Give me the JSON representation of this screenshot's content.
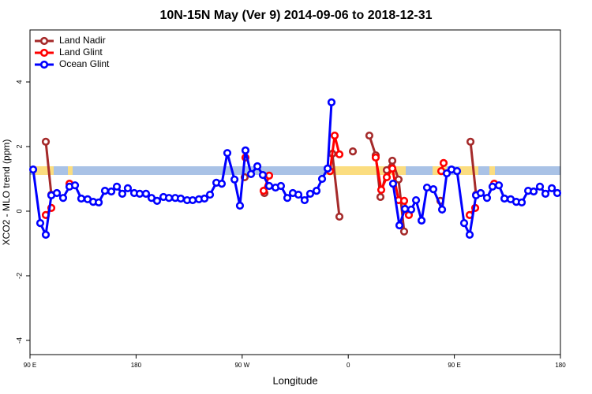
{
  "chart_data": {
    "type": "line",
    "title": "10N-15N May (Ver 9)   2014-09-06 to 2018-12-31",
    "x_label": "Longitude",
    "y_label": "XCO2 - MLO trend (ppm)",
    "xlim": [
      90,
      540
    ],
    "ylim": [
      -4.44,
      5.61
    ],
    "xticks": [
      {
        "value": 90,
        "label": "90 E"
      },
      180,
      {
        "value": 270,
        "label": "90 W"
      },
      {
        "value": 360,
        "label": "0"
      },
      {
        "value": 450,
        "label": "90 E"
      },
      {
        "value": 540,
        "label": "180"
      }
    ],
    "yticks": [
      -4,
      -2,
      0,
      2,
      4
    ],
    "legend": "top-left",
    "series": [
      {
        "name": "Land Nadir",
        "color": "#a52a2a",
        "x": [
          103.4,
          108.1,
          190,
          272.1,
          280,
          288.9,
          320,
          346.5,
          352.5,
          358,
          363.9,
          370,
          377.9,
          383.3,
          387.3,
          392.7,
          397.4,
          402.7,
          407.4,
          420,
          438.2,
          450,
          463.7,
          468.4
        ],
        "values": [
          2.15,
          0.51,
          null,
          1.05,
          null,
          0.56,
          null,
          1.78,
          -0.17,
          null,
          1.85,
          null,
          2.34,
          1.73,
          0.44,
          1.27,
          1.56,
          0.98,
          -0.63,
          null,
          0.32,
          null,
          2.15,
          0.51
        ]
      },
      {
        "name": "Land Glint",
        "color": "#ff0000",
        "x": [
          103.4,
          108.1,
          115,
          123.5,
          200,
          272.8,
          280,
          288.2,
          292.9,
          320,
          344.5,
          348.5,
          352.5,
          370,
          383.3,
          388.0,
          392.7,
          397.4,
          402.7,
          407.4,
          411.4,
          425,
          438.9,
          440.9,
          450,
          463.0,
          467.7,
          475,
          483.8
        ],
        "values": [
          -0.12,
          0.1,
          null,
          0.85,
          null,
          1.66,
          null,
          0.63,
          1.1,
          null,
          1.24,
          2.34,
          1.76,
          null,
          1.66,
          0.66,
          1.05,
          1.32,
          0.34,
          0.32,
          -0.12,
          null,
          1.24,
          1.49,
          null,
          -0.12,
          0.1,
          null,
          0.85
        ]
      },
      {
        "name": "Ocean Glint",
        "color": "#0000ff",
        "x": [
          92.7,
          98.7,
          103.4,
          108.1,
          112.8,
          118.1,
          123.5,
          128.2,
          133.5,
          138.9,
          143.6,
          148.3,
          153.6,
          159.0,
          163.7,
          168.3,
          173.0,
          178.4,
          183.1,
          188.4,
          193.1,
          197.8,
          203.2,
          207.9,
          213.2,
          217.9,
          223.3,
          228.0,
          233.3,
          238.0,
          242.7,
          248.1,
          252.7,
          257.4,
          263.5,
          268.1,
          272.8,
          277.5,
          282.9,
          287.5,
          292.9,
          298.3,
          302.9,
          308.3,
          313.0,
          317.7,
          323.0,
          327.7,
          333.1,
          337.8,
          342.5,
          345.8,
          380,
          398.0,
          403.4,
          408.1,
          413.4,
          417.5,
          422.2,
          426.8,
          432.2,
          439.6,
          443.6,
          447.6,
          452.3,
          458.3,
          463.0,
          468.4,
          472.4,
          477.7,
          482.4,
          487.8,
          492.5,
          497.8,
          502.5,
          507.2,
          512.6,
          517.3,
          522.6,
          527.3,
          532.7,
          537.3
        ],
        "values": [
          1.29,
          -0.37,
          -0.73,
          0.49,
          0.56,
          0.41,
          0.76,
          0.8,
          0.39,
          0.37,
          0.29,
          0.27,
          0.63,
          0.61,
          0.76,
          0.54,
          0.71,
          0.56,
          0.54,
          0.54,
          0.41,
          0.32,
          0.44,
          0.41,
          0.41,
          0.39,
          0.34,
          0.34,
          0.37,
          0.39,
          0.51,
          0.88,
          0.85,
          1.8,
          0.98,
          0.17,
          1.88,
          1.15,
          1.39,
          1.12,
          0.78,
          0.73,
          0.78,
          0.41,
          0.56,
          0.51,
          0.34,
          0.54,
          0.63,
          1.0,
          1.32,
          3.37,
          null,
          0.85,
          -0.44,
          0.07,
          0.05,
          0.34,
          -0.29,
          0.73,
          0.68,
          0.05,
          1.17,
          1.29,
          1.24,
          -0.37,
          -0.73,
          0.49,
          0.56,
          0.41,
          0.76,
          0.8,
          0.39,
          0.37,
          0.29,
          0.27,
          0.63,
          0.61,
          0.76,
          0.54,
          0.71,
          0.56
        ]
      }
    ]
  }
}
